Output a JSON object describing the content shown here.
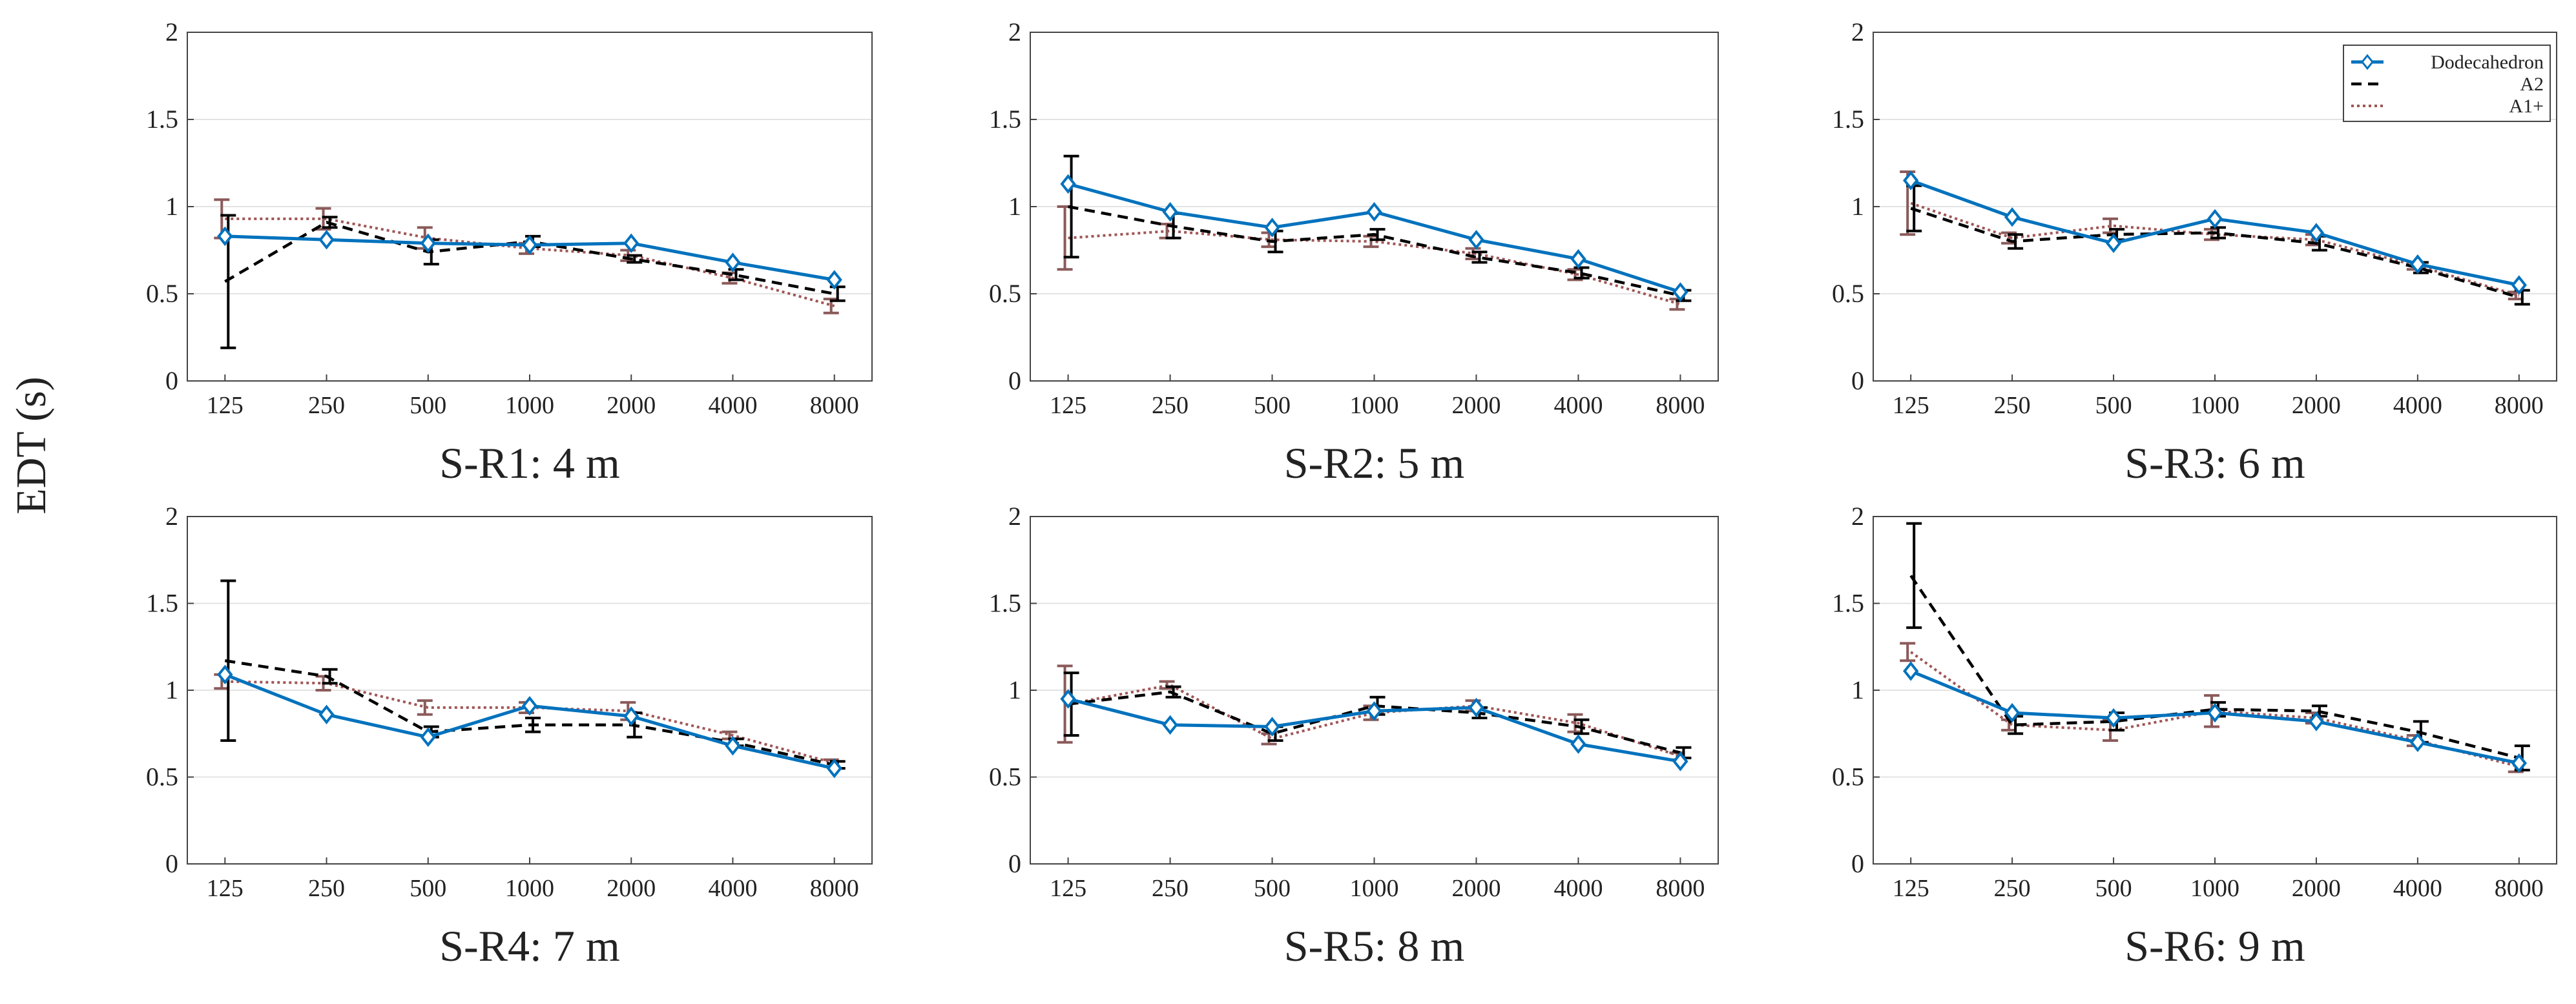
{
  "figure": {
    "ylabel": "EDT (s)"
  },
  "legend": {
    "items": [
      "Dodecahedron",
      "A2",
      "A1+"
    ]
  },
  "colors": {
    "Dodecahedron": "#0072bd",
    "A2": "#000000",
    "A1+": "#a05555",
    "A1+_errorbar": "#8b5a5a"
  },
  "chart_data": [
    {
      "type": "line",
      "title": "S-R1: 4 m",
      "xlabel": "",
      "ylabel": "EDT (s)",
      "categories": [
        "125",
        "250",
        "500",
        "1000",
        "2000",
        "4000",
        "8000"
      ],
      "yticks": [
        "0",
        "0.5",
        "1",
        "1.5",
        "2"
      ],
      "ylim": [
        0,
        2
      ],
      "grid": true,
      "series": [
        {
          "name": "Dodecahedron",
          "values": [
            0.83,
            0.81,
            0.79,
            0.78,
            0.79,
            0.68,
            0.58
          ]
        },
        {
          "name": "A2",
          "values": [
            0.57,
            0.91,
            0.74,
            0.8,
            0.7,
            0.61,
            0.5
          ],
          "err": [
            0.38,
            0.03,
            0.07,
            0.03,
            0.02,
            0.03,
            0.04
          ]
        },
        {
          "name": "A1+",
          "values": [
            0.93,
            0.93,
            0.82,
            0.76,
            0.72,
            0.59,
            0.43
          ],
          "err": [
            0.11,
            0.06,
            0.06,
            0.03,
            0.03,
            0.03,
            0.04
          ]
        }
      ]
    },
    {
      "type": "line",
      "title": "S-R2: 5 m",
      "xlabel": "",
      "ylabel": "EDT (s)",
      "categories": [
        "125",
        "250",
        "500",
        "1000",
        "2000",
        "4000",
        "8000"
      ],
      "yticks": [
        "0",
        "0.5",
        "1",
        "1.5",
        "2"
      ],
      "ylim": [
        0,
        2
      ],
      "grid": true,
      "series": [
        {
          "name": "Dodecahedron",
          "values": [
            1.13,
            0.97,
            0.88,
            0.97,
            0.81,
            0.7,
            0.51
          ]
        },
        {
          "name": "A2",
          "values": [
            1.0,
            0.89,
            0.8,
            0.84,
            0.71,
            0.62,
            0.49
          ],
          "err": [
            0.29,
            0.07,
            0.06,
            0.03,
            0.03,
            0.03,
            0.03
          ]
        },
        {
          "name": "A1+",
          "values": [
            0.82,
            0.86,
            0.81,
            0.8,
            0.73,
            0.61,
            0.44
          ],
          "err": [
            0.18,
            0.04,
            0.04,
            0.03,
            0.03,
            0.03,
            0.03
          ]
        }
      ]
    },
    {
      "type": "line",
      "title": "S-R3: 6 m",
      "xlabel": "",
      "ylabel": "EDT (s)",
      "categories": [
        "125",
        "250",
        "500",
        "1000",
        "2000",
        "4000",
        "8000"
      ],
      "yticks": [
        "0",
        "0.5",
        "1",
        "1.5",
        "2"
      ],
      "ylim": [
        0,
        2
      ],
      "grid": true,
      "legend": "top-right",
      "series": [
        {
          "name": "Dodecahedron",
          "values": [
            1.15,
            0.94,
            0.79,
            0.93,
            0.85,
            0.67,
            0.55
          ]
        },
        {
          "name": "A2",
          "values": [
            0.99,
            0.8,
            0.84,
            0.85,
            0.79,
            0.65,
            0.48
          ],
          "err": [
            0.13,
            0.04,
            0.03,
            0.03,
            0.04,
            0.03,
            0.04
          ]
        },
        {
          "name": "A1+",
          "values": [
            1.02,
            0.82,
            0.89,
            0.84,
            0.81,
            0.66,
            0.49
          ],
          "err": [
            0.18,
            0.03,
            0.04,
            0.03,
            0.03,
            0.02,
            0.02
          ]
        }
      ]
    },
    {
      "type": "line",
      "title": "S-R4: 7 m",
      "xlabel": "",
      "ylabel": "EDT (s)",
      "categories": [
        "125",
        "250",
        "500",
        "1000",
        "2000",
        "4000",
        "8000"
      ],
      "yticks": [
        "0",
        "0.5",
        "1",
        "1.5",
        "2"
      ],
      "ylim": [
        0,
        2
      ],
      "grid": true,
      "series": [
        {
          "name": "Dodecahedron",
          "values": [
            1.09,
            0.86,
            0.73,
            0.91,
            0.85,
            0.68,
            0.55
          ]
        },
        {
          "name": "A2",
          "values": [
            1.17,
            1.08,
            0.76,
            0.8,
            0.8,
            0.7,
            0.57
          ],
          "err": [
            0.46,
            0.04,
            0.03,
            0.04,
            0.07,
            0.02,
            0.02
          ]
        },
        {
          "name": "A1+",
          "values": [
            1.05,
            1.04,
            0.9,
            0.9,
            0.88,
            0.74,
            0.58
          ],
          "err": [
            0.04,
            0.04,
            0.04,
            0.03,
            0.05,
            0.02,
            0.02
          ]
        }
      ]
    },
    {
      "type": "line",
      "title": "S-R5: 8 m",
      "xlabel": "",
      "ylabel": "EDT (s)",
      "categories": [
        "125",
        "250",
        "500",
        "1000",
        "2000",
        "4000",
        "8000"
      ],
      "yticks": [
        "0",
        "0.5",
        "1",
        "1.5",
        "2"
      ],
      "ylim": [
        0,
        2
      ],
      "grid": true,
      "series": [
        {
          "name": "Dodecahedron",
          "values": [
            0.95,
            0.8,
            0.79,
            0.88,
            0.9,
            0.69,
            0.59
          ]
        },
        {
          "name": "A2",
          "values": [
            0.92,
            0.99,
            0.75,
            0.91,
            0.87,
            0.79,
            0.64
          ],
          "err": [
            0.18,
            0.03,
            0.04,
            0.05,
            0.03,
            0.04,
            0.03
          ]
        },
        {
          "name": "A1+",
          "values": [
            0.92,
            1.03,
            0.72,
            0.87,
            0.91,
            0.81,
            0.62
          ],
          "err": [
            0.22,
            0.02,
            0.03,
            0.04,
            0.03,
            0.05,
            0.02
          ]
        }
      ]
    },
    {
      "type": "line",
      "title": "S-R6: 9 m",
      "xlabel": "",
      "ylabel": "EDT (s)",
      "categories": [
        "125",
        "250",
        "500",
        "1000",
        "2000",
        "4000",
        "8000"
      ],
      "yticks": [
        "0",
        "0.5",
        "1",
        "1.5",
        "2"
      ],
      "ylim": [
        0,
        2
      ],
      "grid": true,
      "series": [
        {
          "name": "Dodecahedron",
          "values": [
            1.11,
            0.87,
            0.84,
            0.87,
            0.82,
            0.7,
            0.58
          ]
        },
        {
          "name": "A2",
          "values": [
            1.66,
            0.8,
            0.82,
            0.89,
            0.88,
            0.76,
            0.61
          ],
          "err": [
            0.3,
            0.05,
            0.05,
            0.04,
            0.03,
            0.06,
            0.07
          ]
        },
        {
          "name": "A1+",
          "values": [
            1.22,
            0.8,
            0.77,
            0.88,
            0.84,
            0.71,
            0.56
          ],
          "err": [
            0.05,
            0.03,
            0.06,
            0.09,
            0.03,
            0.03,
            0.03
          ]
        }
      ]
    }
  ]
}
